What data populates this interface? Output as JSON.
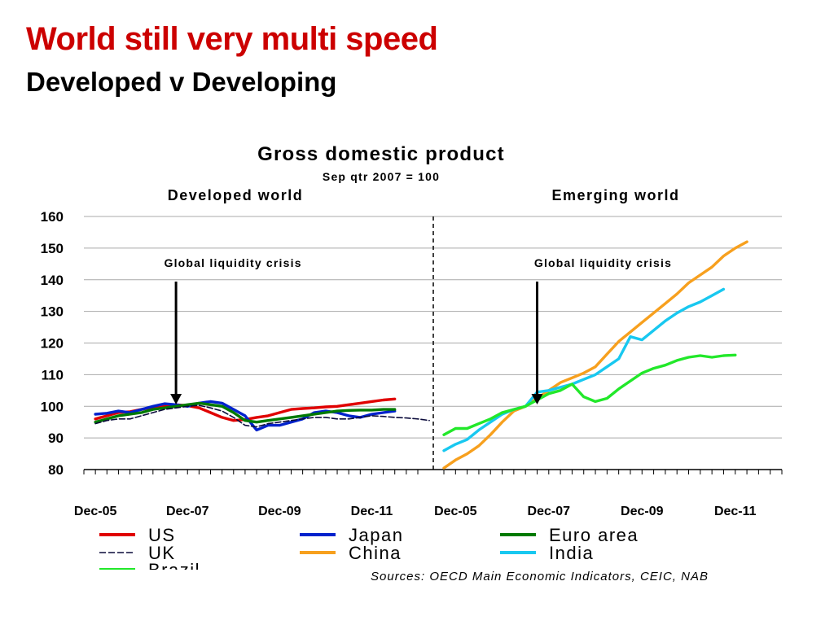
{
  "slide": {
    "title": "World still very multi speed",
    "subtitle": "Developed v Developing",
    "source": "Sources: OECD Main Economic Indicators, CEIC, NAB"
  },
  "chart_data": {
    "type": "line",
    "title": "Gross domestic product",
    "subtitle": "Sep qtr 2007 = 100",
    "ylim": [
      80,
      160
    ],
    "yticks": [
      80,
      90,
      100,
      110,
      120,
      130,
      140,
      150,
      160
    ],
    "grid": true,
    "legend_position": "bottom",
    "panels": [
      {
        "label": "Developed world",
        "annotation": "Global liquidity crisis",
        "annotation_x": "Sep-07",
        "xlim": [
          "Sep-05",
          "Dec-12"
        ],
        "xticks": [
          "Dec-05",
          "Dec-07",
          "Dec-09",
          "Dec-11"
        ],
        "series": [
          {
            "name": "US",
            "color": "#e00000",
            "dash": false,
            "start": "Dec-05",
            "values": [
              96,
              97,
              98,
              98.3,
              99,
              99.7,
              100,
              100.5,
              100.2,
              99.5,
              98,
              96.5,
              95.5,
              95.8,
              96.5,
              97,
              98,
              99,
              99.3,
              99.5,
              99.8,
              100,
              100.5,
              101,
              101.5,
              102,
              102.3
            ]
          },
          {
            "name": "Japan",
            "color": "#0022cc",
            "dash": false,
            "start": "Dec-05",
            "values": [
              97.5,
              97.8,
              98.5,
              98,
              99,
              100,
              100.8,
              100.5,
              100,
              101,
              101.5,
              101,
              99,
              97,
              92.5,
              94,
              94,
              95,
              96,
              98,
              98.5,
              98,
              97,
              96.5,
              97.5,
              98,
              98.5
            ]
          },
          {
            "name": "Euro area",
            "color": "#007a00",
            "dash": false,
            "start": "Dec-05",
            "values": [
              95,
              96,
              97,
              97.5,
              98,
              99,
              99.5,
              100,
              100.5,
              101,
              100.5,
              100,
              98,
              95.5,
              95,
              95.5,
              96,
              96.5,
              97,
              97.5,
              98,
              98.5,
              98.7,
              98.8,
              98.8,
              99,
              99
            ]
          },
          {
            "name": "UK",
            "color": "#0a0a3a",
            "dash": true,
            "start": "Dec-05",
            "values": [
              94.5,
              95.5,
              96,
              96,
              97,
              98,
              99,
              99.5,
              100,
              100.3,
              99.5,
              98.5,
              96.5,
              94,
              93.5,
              94.5,
              95,
              95.5,
              96,
              96.5,
              96.5,
              96,
              96,
              96.5,
              97,
              96.8,
              96.5,
              96.3,
              96,
              95.5
            ]
          }
        ]
      },
      {
        "label": "Emerging world",
        "annotation": "Global liquidity crisis",
        "annotation_x": "Sep-07",
        "xlim": [
          "Sep-05",
          "Dec-12"
        ],
        "xticks": [
          "Dec-05",
          "Dec-07",
          "Dec-09",
          "Dec-11"
        ],
        "series": [
          {
            "name": "China",
            "color": "#f7a01e",
            "dash": false,
            "start": "Sep-05",
            "values": [
              80.5,
              83,
              85,
              87.5,
              91,
              95,
              98.5,
              100,
              102.5,
              105,
              107.5,
              109,
              110.5,
              112.5,
              116.5,
              120.5,
              123.5,
              126.5,
              129.5,
              132.5,
              135.5,
              139,
              141.5,
              144,
              147.5,
              150,
              152
            ]
          },
          {
            "name": "India",
            "color": "#18c8f0",
            "dash": false,
            "start": "Sep-05",
            "values": [
              86,
              88,
              89.5,
              92.5,
              95,
              97.5,
              99,
              100,
              104.5,
              105,
              106,
              107,
              108.5,
              110,
              112.5,
              115,
              122,
              121,
              124,
              127,
              129.5,
              131.5,
              133,
              135,
              137
            ]
          },
          {
            "name": "Brazil",
            "color": "#22e82a",
            "dash": false,
            "start": "Sep-05",
            "values": [
              91,
              93,
              93,
              94.5,
              96,
              98,
              99,
              100,
              102,
              104,
              105,
              107,
              103,
              101.5,
              102.5,
              105.5,
              108,
              110.5,
              112,
              113,
              114.5,
              115.5,
              116,
              115.5,
              116,
              116.2
            ]
          }
        ]
      }
    ],
    "legend": [
      {
        "name": "US",
        "color": "#e00000",
        "dash": false
      },
      {
        "name": "Japan",
        "color": "#0022cc",
        "dash": false
      },
      {
        "name": "Euro area",
        "color": "#007a00",
        "dash": false
      },
      {
        "name": "UK",
        "color": "#0a0a3a",
        "dash": true
      },
      {
        "name": "China",
        "color": "#f7a01e",
        "dash": false
      },
      {
        "name": "India",
        "color": "#18c8f0",
        "dash": false
      },
      {
        "name": "Brazil",
        "color": "#22e82a",
        "dash": false
      }
    ]
  }
}
